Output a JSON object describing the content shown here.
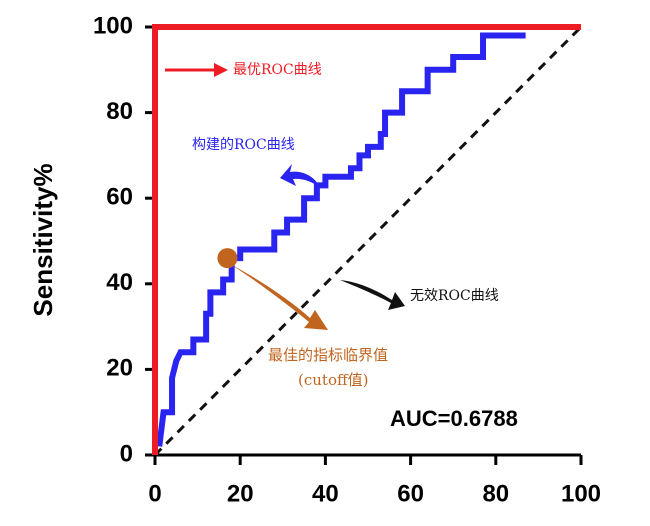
{
  "chart_data": {
    "type": "line",
    "ylabel": "Sensitivity%",
    "xlim": [
      0,
      100
    ],
    "ylim": [
      0,
      100
    ],
    "xticks": [
      0,
      20,
      40,
      60,
      80,
      100
    ],
    "yticks": [
      0,
      20,
      40,
      60,
      80,
      100
    ],
    "series": [
      {
        "name": "最优ROC曲线",
        "color": "#ee1c24",
        "x": [
          0,
          0,
          100
        ],
        "y": [
          0,
          100,
          100
        ]
      },
      {
        "name": "构建的ROC曲线",
        "color": "#2a24f0",
        "x": [
          1,
          2,
          4,
          4,
          5,
          6,
          9,
          9,
          12,
          12,
          13,
          13,
          16,
          16,
          18,
          18,
          20,
          20,
          28,
          28,
          31,
          31,
          35,
          35,
          38,
          38,
          40,
          40,
          46,
          46,
          48,
          48,
          50,
          50,
          53,
          53,
          54,
          54,
          58,
          58,
          64,
          64,
          70,
          70,
          77,
          77,
          87
        ],
        "y": [
          2,
          10,
          10,
          18,
          22,
          24,
          24,
          27,
          27,
          33,
          33,
          38,
          38,
          41,
          41,
          46,
          46,
          48,
          48,
          52,
          52,
          55,
          55,
          60,
          60,
          63,
          63,
          65,
          65,
          67,
          67,
          70,
          70,
          72,
          72,
          75,
          75,
          80,
          80,
          85,
          85,
          90,
          90,
          93,
          93,
          98,
          98
        ]
      },
      {
        "name": "无效ROC曲线",
        "color": "#111111",
        "dashed": true,
        "x": [
          0,
          100
        ],
        "y": [
          0,
          100
        ]
      }
    ],
    "cutoff_point": {
      "x": 17,
      "y": 46,
      "color": "#c0641e"
    },
    "annotations": [
      "最佳的指标临界值",
      "(cutoff值)",
      "AUC=0.6788"
    ]
  }
}
